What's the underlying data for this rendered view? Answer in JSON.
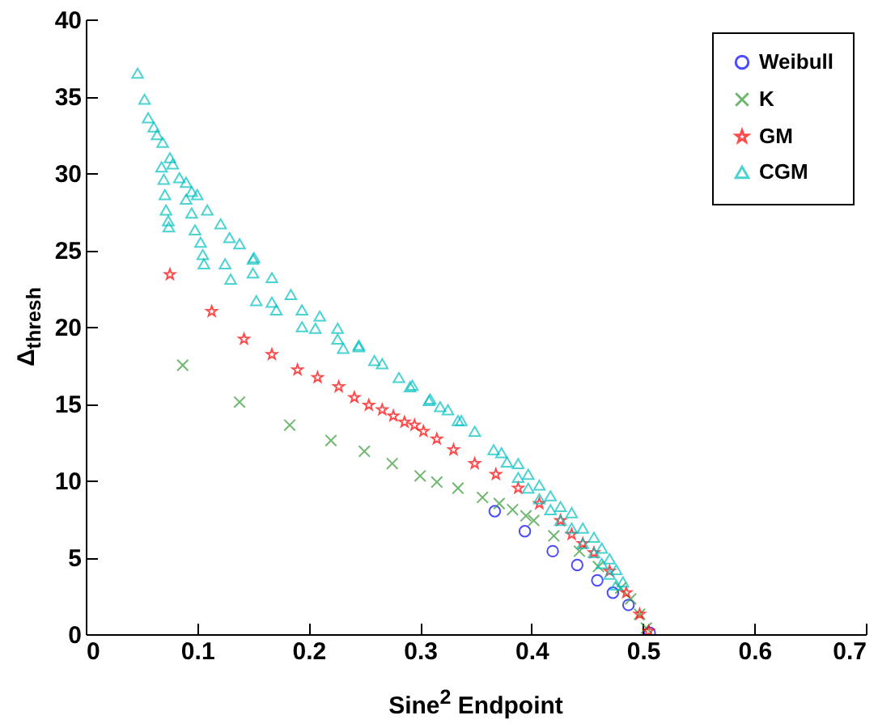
{
  "chart_data": {
    "type": "scatter",
    "xlabel": "Sine$^{2}$ Endpoint",
    "ylabel": "Δ$_{thresh}$",
    "xlim": [
      0,
      0.7
    ],
    "ylim": [
      0,
      40
    ],
    "xticks": [
      0,
      0.1,
      0.2,
      0.3,
      0.4,
      0.5,
      0.6,
      0.7
    ],
    "yticks": [
      0,
      5,
      10,
      15,
      20,
      25,
      30,
      35,
      40
    ],
    "legend": "top right",
    "grid": false,
    "series": [
      {
        "name": "Weibull",
        "color": "#0000ff",
        "marker": "circle",
        "x": [
          0.367,
          0.394,
          0.419,
          0.441,
          0.459,
          0.473,
          0.487,
          0.506
        ],
        "values": [
          8.0,
          6.7,
          5.4,
          4.5,
          3.5,
          2.7,
          1.9,
          0.1
        ]
      },
      {
        "name": "K",
        "color": "#339933",
        "marker": "cross",
        "x": [
          0.087,
          0.138,
          0.183,
          0.22,
          0.25,
          0.275,
          0.3,
          0.315,
          0.334,
          0.356,
          0.371,
          0.383,
          0.395,
          0.402,
          0.42,
          0.443,
          0.46,
          0.48,
          0.489,
          0.497,
          0.503
        ],
        "values": [
          17.5,
          15.1,
          13.6,
          12.6,
          11.9,
          11.1,
          10.3,
          9.9,
          9.5,
          8.9,
          8.5,
          8.1,
          7.7,
          7.4,
          6.4,
          5.4,
          4.4,
          3.0,
          2.3,
          1.3,
          0.4
        ]
      },
      {
        "name": "GM",
        "color": "#ff0000",
        "marker": "star",
        "x": [
          0.0755,
          0.113,
          0.142,
          0.167,
          0.19,
          0.208,
          0.227,
          0.241,
          0.254,
          0.266,
          0.276,
          0.286,
          0.295,
          0.303,
          0.315,
          0.33,
          0.349,
          0.368,
          0.388,
          0.407,
          0.426,
          0.436,
          0.446,
          0.456,
          0.47,
          0.485,
          0.497,
          0.505
        ],
        "values": [
          23.4,
          21.0,
          19.2,
          18.2,
          17.2,
          16.7,
          16.1,
          15.4,
          14.9,
          14.6,
          14.2,
          13.8,
          13.6,
          13.2,
          12.7,
          12.0,
          11.1,
          10.4,
          9.5,
          8.5,
          7.4,
          6.5,
          5.9,
          5.3,
          4.1,
          2.7,
          1.3,
          0.2
        ]
      },
      {
        "name": "CGM",
        "color": "#00bfbf",
        "marker": "triangle",
        "x": [
          0.0465,
          0.0527,
          0.056,
          0.061,
          0.064,
          0.069,
          0.0755,
          0.078,
          0.084,
          0.09,
          0.095,
          0.1,
          0.109,
          0.121,
          0.129,
          0.138,
          0.151,
          0.167,
          0.184,
          0.194,
          0.21,
          0.226,
          0.245,
          0.259,
          0.281,
          0.293,
          0.309,
          0.325,
          0.337,
          0.068,
          0.07,
          0.071,
          0.072,
          0.074,
          0.0745,
          0.09,
          0.095,
          0.098,
          0.103,
          0.105,
          0.106,
          0.125,
          0.13,
          0.15,
          0.15,
          0.153,
          0.167,
          0.171,
          0.194,
          0.206,
          0.226,
          0.231,
          0.245,
          0.266,
          0.291,
          0.308,
          0.318,
          0.334,
          0.349,
          0.366,
          0.373,
          0.378,
          0.388,
          0.397,
          0.407,
          0.417,
          0.426,
          0.436,
          0.446,
          0.456,
          0.463,
          0.47,
          0.476,
          0.482,
          0.388,
          0.397,
          0.407,
          0.417,
          0.426,
          0.436,
          0.446,
          0.456,
          0.463,
          0.47,
          0.476
        ],
        "values": [
          36.5,
          34.8,
          33.6,
          33.0,
          32.5,
          32.0,
          31.0,
          30.6,
          29.7,
          29.4,
          28.8,
          28.6,
          27.6,
          26.7,
          25.8,
          25.4,
          24.5,
          23.2,
          22.1,
          21.1,
          20.7,
          19.9,
          18.8,
          17.8,
          16.7,
          16.2,
          15.3,
          14.6,
          13.9,
          30.4,
          29.6,
          28.6,
          27.6,
          26.9,
          26.5,
          28.3,
          27.4,
          26.3,
          25.5,
          24.7,
          24.1,
          24.1,
          23.1,
          24.4,
          23.5,
          21.7,
          21.6,
          21.1,
          20.0,
          19.9,
          19.2,
          18.6,
          18.7,
          17.6,
          16.1,
          15.2,
          14.8,
          13.9,
          13.2,
          12.0,
          11.8,
          11.2,
          11.1,
          10.4,
          9.7,
          9.0,
          8.3,
          7.9,
          6.9,
          6.3,
          5.6,
          4.9,
          4.2,
          3.4,
          10.2,
          9.5,
          8.8,
          8.1,
          7.4,
          6.9,
          5.9,
          5.3,
          4.6,
          3.9,
          3.2
        ]
      }
    ]
  }
}
